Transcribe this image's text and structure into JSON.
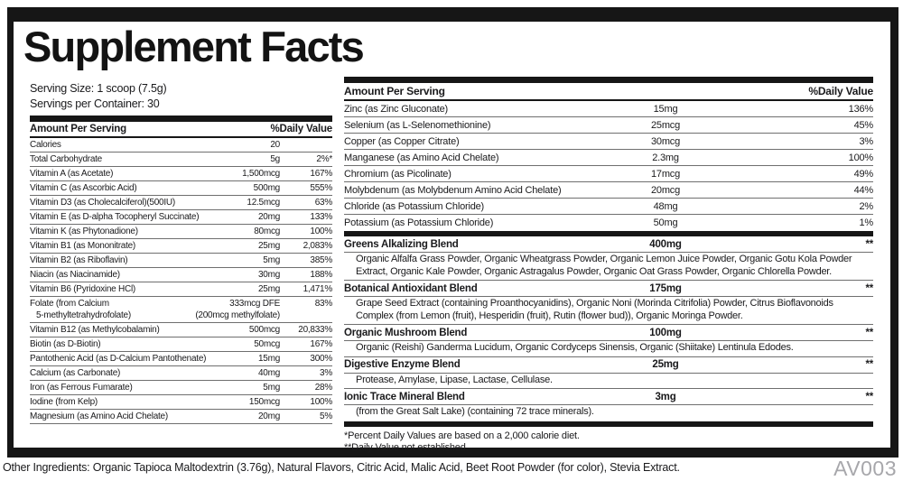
{
  "title": "Supplement Facts",
  "serving_size": "Serving Size: 1 scoop (7.5g)",
  "servings_per_container": "Servings per Container: 30",
  "left_table": {
    "header_amount": "Amount Per Serving",
    "header_dv": "%Daily Value",
    "rows": [
      {
        "name": "Calories",
        "amount": "20",
        "dv": ""
      },
      {
        "name": "Total Carbohydrate",
        "amount": "5g",
        "dv": "2%*"
      },
      {
        "name": "Vitamin A (as Acetate)",
        "amount": "1,500mcg",
        "dv": "167%"
      },
      {
        "name": "Vitamin C (as Ascorbic Acid)",
        "amount": "500mg",
        "dv": "555%"
      },
      {
        "name": "Vitamin D3 (as Cholecalciferol)(500IU)",
        "amount": "12.5mcg",
        "dv": "63%"
      },
      {
        "name": "Vitamin E (as D-alpha Tocopheryl Succinate)",
        "amount": "20mg",
        "dv": "133%"
      },
      {
        "name": "Vitamin K (as Phytonadione)",
        "amount": "80mcg",
        "dv": "100%"
      },
      {
        "name": "Vitamin B1 (as Mononitrate)",
        "amount": "25mg",
        "dv": "2,083%"
      },
      {
        "name": "Vitamin B2 (as Riboflavin)",
        "amount": "5mg",
        "dv": "385%"
      },
      {
        "name": "Niacin (as Niacinamide)",
        "amount": "30mg",
        "dv": "188%"
      },
      {
        "name": "Vitamin B6 (Pyridoxine HCl)",
        "amount": "25mg",
        "dv": "1,471%"
      },
      {
        "name": "Folate (from Calcium",
        "name2": "5-methyltetrahydrofolate)",
        "amount": "333mcg DFE",
        "amount2": "(200mcg methylfolate)",
        "dv": "83%"
      },
      {
        "name": "Vitamin B12 (as Methylcobalamin)",
        "amount": "500mcg",
        "dv": "20,833%"
      },
      {
        "name": "Biotin (as D-Biotin)",
        "amount": "50mcg",
        "dv": "167%"
      },
      {
        "name": "Pantothenic Acid (as D-Calcium Pantothenate)",
        "amount": "15mg",
        "dv": "300%"
      },
      {
        "name": "Calcium (as Carbonate)",
        "amount": "40mg",
        "dv": "3%"
      },
      {
        "name": "Iron (as Ferrous Fumarate)",
        "amount": "5mg",
        "dv": "28%"
      },
      {
        "name": "Iodine (from Kelp)",
        "amount": "150mcg",
        "dv": "100%"
      },
      {
        "name": "Magnesium (as Amino Acid Chelate)",
        "amount": "20mg",
        "dv": "5%"
      }
    ]
  },
  "right_table": {
    "header_amount": "Amount Per Serving",
    "header_dv": "%Daily Value",
    "rows": [
      {
        "name": "Zinc (as Zinc Gluconate)",
        "amount": "15mg",
        "dv": "136%"
      },
      {
        "name": "Selenium (as L-Selenomethionine)",
        "amount": "25mcg",
        "dv": "45%"
      },
      {
        "name": "Copper (as Copper Citrate)",
        "amount": "30mcg",
        "dv": "3%"
      },
      {
        "name": "Manganese (as Amino Acid Chelate)",
        "amount": "2.3mg",
        "dv": "100%"
      },
      {
        "name": "Chromium (as Picolinate)",
        "amount": "17mcg",
        "dv": "49%"
      },
      {
        "name": "Molybdenum (as Molybdenum Amino Acid Chelate)",
        "amount": "20mcg",
        "dv": "44%"
      },
      {
        "name": "Chloride (as Potassium Chloride)",
        "amount": "48mg",
        "dv": "2%"
      },
      {
        "name": "Potassium (as Potassium Chloride)",
        "amount": "50mg",
        "dv": "1%"
      }
    ],
    "blends": [
      {
        "name": "Greens Alkalizing Blend",
        "amount": "400mg",
        "dv": "**",
        "description": "Organic Alfalfa Grass Powder, Organic Wheatgrass Powder, Organic Lemon Juice Powder, Organic Gotu Kola Powder Extract, Organic Kale Powder, Organic Astragalus Powder, Organic Oat Grass Powder, Organic Chlorella Powder."
      },
      {
        "name": "Botanical Antioxidant Blend",
        "amount": "175mg",
        "dv": "**",
        "description": "Grape Seed Extract (containing Proanthocyanidins), Organic Noni (Morinda Citrifolia) Powder, Citrus Bioflavonoids Complex (from Lemon (fruit), Hesperidin (fruit), Rutin (flower bud)), Organic Moringa Powder."
      },
      {
        "name": "Organic Mushroom Blend",
        "amount": "100mg",
        "dv": "**",
        "description": "Organic (Reishi) Ganderma Lucidum, Organic Cordyceps Sinensis, Organic (Shiitake) Lentinula Edodes."
      },
      {
        "name": "Digestive Enzyme Blend",
        "amount": "25mg",
        "dv": "**",
        "description": "Protease, Amylase, Lipase, Lactase, Cellulase."
      },
      {
        "name": "Ionic Trace Mineral Blend",
        "amount": "3mg",
        "dv": "**",
        "description": "(from the Great Salt Lake) (containing 72 trace minerals)."
      }
    ],
    "footnotes": [
      "*Percent Daily Values are based on a 2,000 calorie diet.",
      "**Daily Value not established."
    ]
  },
  "other_ingredients": "Other Ingredients: Organic Tapioca Maltodextrin (3.76g), Natural Flavors, Citric Acid, Malic Acid, Beet Root Powder (for color), Stevia Extract.",
  "product_code": "AV003",
  "colors": {
    "text": "#1a1a1c",
    "bar": "#161616",
    "rule": "#6f6f6f",
    "code_gray": "#a7a7ab"
  }
}
